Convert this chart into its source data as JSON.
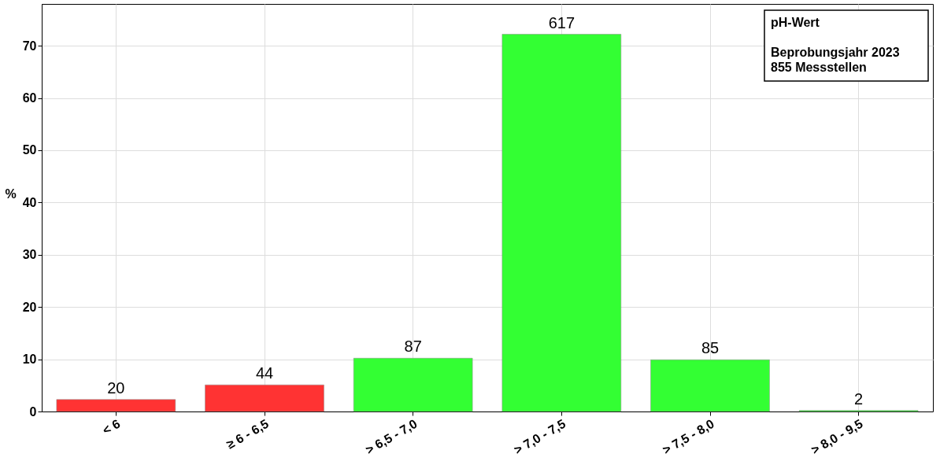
{
  "chart_data": {
    "type": "bar",
    "ylabel": "%",
    "categories": [
      "< 6",
      "≥ 6 - 6,5",
      "> 6,5 - 7,0",
      "> 7,0 - 7,5",
      "> 7,5 - 8,0",
      "> 8,0 - 9,5"
    ],
    "values": [
      2.3,
      5.1,
      10.2,
      72.2,
      9.9,
      0.2
    ],
    "colors": [
      "#ff3333",
      "#ff3333",
      "#33ff33",
      "#33ff33",
      "#33ff33",
      "#33ff33"
    ],
    "ylim": [
      0,
      78
    ],
    "yticks": [
      0,
      10,
      20,
      30,
      40,
      50,
      60,
      70
    ],
    "grid": true,
    "annotations": [
      "pH-Wert",
      "Beprobungsjahr 2023\n855 Messstellen",
      {
        "text": "20",
        "x": "< 6",
        "y": 2.3
      },
      {
        "text": "44",
        "x": "≥ 6 - 6,5",
        "y": 5.1
      },
      {
        "text": "87",
        "x": "> 6,5 - 7,0",
        "y": 10.2
      },
      {
        "text": "617",
        "x": "> 7,0 - 7,5",
        "y": 72.2
      },
      {
        "text": "85",
        "x": "> 7,5 - 8,0",
        "y": 9.9
      },
      {
        "text": "2",
        "x": "> 8,0 - 9,5",
        "y": 0.2
      }
    ]
  }
}
